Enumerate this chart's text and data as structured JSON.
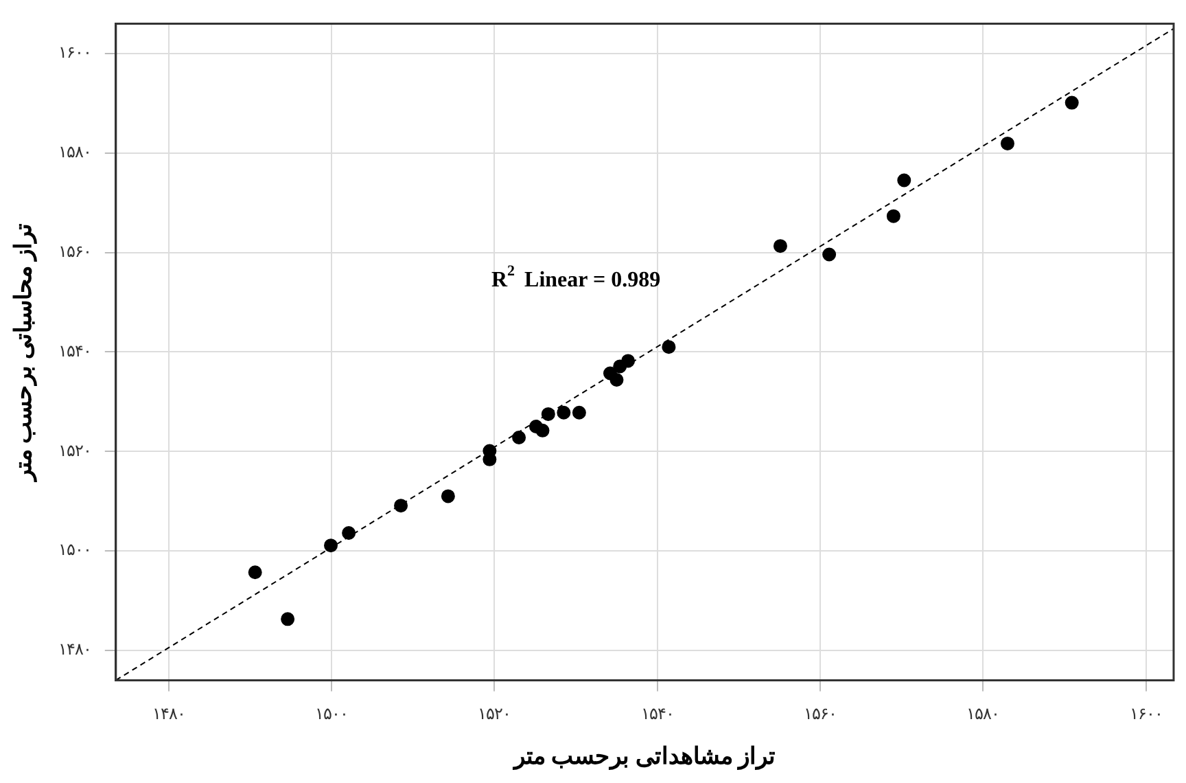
{
  "chart_data": {
    "type": "scatter",
    "xlabel": "تراز مشاهداتی برحسب متر",
    "ylabel": "تراز محاسباتی برحسب متر",
    "annotations": [
      "R$^{2}$ Linear = 0.989"
    ],
    "xlim": [
      1473.5,
      1603.4
    ],
    "ylim": [
      1474,
      1606
    ],
    "xticks": [
      {
        "value": 1480,
        "label": "۱۴۸۰"
      },
      {
        "value": 1500,
        "label": "۱۵۰۰"
      },
      {
        "value": 1520,
        "label": "۱۵۲۰"
      },
      {
        "value": 1540,
        "label": "۱۵۴۰"
      },
      {
        "value": 1560,
        "label": "۱۵۶۰"
      },
      {
        "value": 1580,
        "label": "۱۵۸۰"
      },
      {
        "value": 1600,
        "label": "۱۶۰۰"
      }
    ],
    "yticks": [
      {
        "value": 1480,
        "label": "۱۴۸۰"
      },
      {
        "value": 1500,
        "label": "۱۵۰۰"
      },
      {
        "value": 1520,
        "label": "۱۵۲۰"
      },
      {
        "value": 1540,
        "label": "۱۵۴۰"
      },
      {
        "value": 1560,
        "label": "۱۵۶۰"
      },
      {
        "value": 1580,
        "label": "۱۵۸۰"
      },
      {
        "value": 1600,
        "label": "۱۶۰۰"
      }
    ],
    "grid": true,
    "legend": false,
    "series": [
      {
        "marker": "circle",
        "color": "#000000",
        "x": [
          1490.6,
          1494.6,
          1499.9,
          1502.1,
          1508.5,
          1514.3,
          1519.4,
          1519.4,
          1523.0,
          1525.1,
          1525.9,
          1526.6,
          1528.5,
          1530.4,
          1534.2,
          1535.0,
          1535.4,
          1536.4,
          1541.4,
          1555.1,
          1561.1,
          1569.0,
          1570.3,
          1583.0,
          1590.9
        ],
        "values": [
          1495.7,
          1486.3,
          1501.1,
          1503.6,
          1509.1,
          1511.0,
          1520.1,
          1518.4,
          1522.8,
          1525.0,
          1524.2,
          1527.5,
          1527.8,
          1527.8,
          1535.7,
          1534.4,
          1537.1,
          1538.2,
          1541.0,
          1561.3,
          1559.6,
          1567.3,
          1574.5,
          1581.9,
          1590.1
        ]
      },
      {
        "type": "line",
        "marker": "none",
        "color": "#000000",
        "line_style": "dashed",
        "x": [
          1473.5,
          1603.4
        ],
        "values": [
          1474,
          1605
        ]
      }
    ]
  }
}
